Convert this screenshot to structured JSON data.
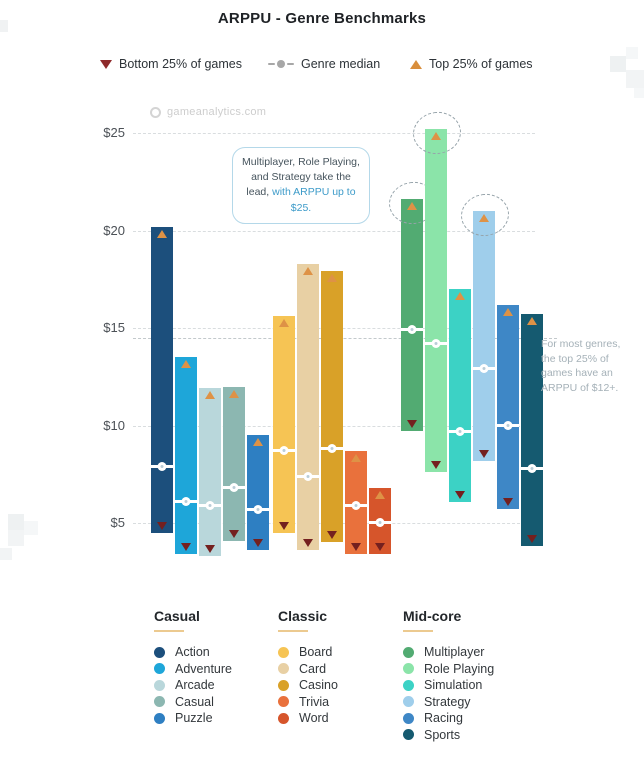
{
  "title": "ARPPU - Genre Benchmarks",
  "watermark": "gameanalytics.com",
  "top_legend": [
    {
      "label": "Bottom 25% of games",
      "icon": "triangle-down-icon",
      "color": "#8e2a2b"
    },
    {
      "label": "Genre median",
      "icon": "median-icon",
      "color": "#a7a7a7"
    },
    {
      "label": "Top 25% of games",
      "icon": "triangle-up-icon",
      "color": "#d98e3c"
    }
  ],
  "annotation_box": {
    "text_plain": "Multiplayer, Role Playing, and Strategy take the lead, ",
    "text_highlight": "with ARPPU up to $25.",
    "highlight_color": "#3d9bc9"
  },
  "side_note": "For most genres, the top 25% of games have an ARPPU of $12+.",
  "chart_data": {
    "type": "bar",
    "subtype": "floating-range-bars",
    "title": "ARPPU - Genre Benchmarks",
    "unit": "USD",
    "ylim": [
      3,
      26
    ],
    "grid": true,
    "yticks": [
      {
        "label": "$5",
        "value": 5
      },
      {
        "label": "$10",
        "value": 10
      },
      {
        "label": "$15",
        "value": 15
      },
      {
        "label": "$20",
        "value": 20
      },
      {
        "label": "$25",
        "value": 25
      }
    ],
    "reference_line_value": 14.5,
    "marker_colors": {
      "top25": "#de9246",
      "bottom25": "#74201f",
      "median": "#ffffff"
    },
    "groups": [
      {
        "name": "Casual",
        "genres": [
          {
            "name": "Action",
            "color": "#1c4f7c",
            "bottom25": 4.5,
            "median": 7.9,
            "top25": 20.2,
            "circled": false
          },
          {
            "name": "Adventure",
            "color": "#1ea6d9",
            "bottom25": 3.4,
            "median": 6.1,
            "top25": 13.5,
            "circled": false
          },
          {
            "name": "Arcade",
            "color": "#b9d7db",
            "bottom25": 3.3,
            "median": 5.9,
            "top25": 11.9,
            "circled": false
          },
          {
            "name": "Casual",
            "color": "#8cb7b1",
            "bottom25": 4.1,
            "median": 6.8,
            "top25": 12.0,
            "circled": false
          },
          {
            "name": "Puzzle",
            "color": "#2e7fc2",
            "bottom25": 3.6,
            "median": 5.7,
            "top25": 9.5,
            "circled": false
          }
        ]
      },
      {
        "name": "Classic",
        "genres": [
          {
            "name": "Board",
            "color": "#f6c454",
            "bottom25": 4.5,
            "median": 8.7,
            "top25": 15.6,
            "circled": false
          },
          {
            "name": "Card",
            "color": "#e8d0a4",
            "bottom25": 3.6,
            "median": 7.4,
            "top25": 18.3,
            "circled": false
          },
          {
            "name": "Casino",
            "color": "#d9a128",
            "bottom25": 4.0,
            "median": 8.8,
            "top25": 17.9,
            "circled": false
          },
          {
            "name": "Trivia",
            "color": "#e9713c",
            "bottom25": 3.4,
            "median": 5.9,
            "top25": 8.7,
            "circled": false
          },
          {
            "name": "Word",
            "color": "#d6552b",
            "bottom25": 3.4,
            "median": 5.0,
            "top25": 6.8,
            "circled": false
          }
        ]
      },
      {
        "name": "Mid-core",
        "genres": [
          {
            "name": "Multiplayer",
            "color": "#52ab72",
            "bottom25": 9.7,
            "median": 14.9,
            "top25": 21.6,
            "circled": true
          },
          {
            "name": "Role Playing",
            "color": "#8be4a9",
            "bottom25": 7.6,
            "median": 14.2,
            "top25": 25.2,
            "circled": true
          },
          {
            "name": "Simulation",
            "color": "#3cd2c5",
            "bottom25": 6.1,
            "median": 9.7,
            "top25": 17.0,
            "circled": false
          },
          {
            "name": "Strategy",
            "color": "#9fceeb",
            "bottom25": 8.2,
            "median": 12.9,
            "top25": 21.0,
            "circled": true
          },
          {
            "name": "Racing",
            "color": "#3e87c6",
            "bottom25": 5.7,
            "median": 10.0,
            "top25": 16.2,
            "circled": false
          },
          {
            "name": "Sports",
            "color": "#155a70",
            "bottom25": 3.8,
            "median": 7.8,
            "top25": 15.7,
            "circled": false
          }
        ]
      }
    ]
  }
}
